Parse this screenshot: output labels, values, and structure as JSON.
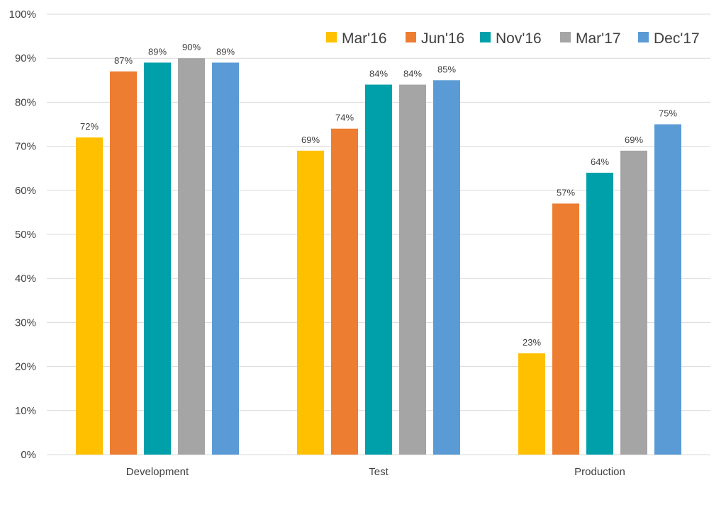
{
  "chart_data": {
    "type": "bar",
    "categories": [
      "Development",
      "Test",
      "Production"
    ],
    "series": [
      {
        "name": "Mar'16",
        "color": "#FFC000",
        "values": [
          72,
          69,
          23
        ]
      },
      {
        "name": "Jun'16",
        "color": "#ED7D31",
        "values": [
          87,
          74,
          57
        ]
      },
      {
        "name": "Nov'16",
        "color": "#00A0AA",
        "values": [
          89,
          84,
          64
        ]
      },
      {
        "name": "Mar'17",
        "color": "#A5A5A5",
        "values": [
          90,
          84,
          69
        ]
      },
      {
        "name": "Dec'17",
        "color": "#5B9BD5",
        "values": [
          89,
          85,
          75
        ]
      }
    ],
    "ylim": [
      0,
      100
    ],
    "yticks": [
      "0%",
      "10%",
      "20%",
      "30%",
      "40%",
      "50%",
      "60%",
      "70%",
      "80%",
      "90%",
      "100%"
    ],
    "data_labels": [
      [
        "72%",
        "69%",
        "23%"
      ],
      [
        "87%",
        "74%",
        "57%"
      ],
      [
        "89%",
        "84%",
        "64%"
      ],
      [
        "90%",
        "84%",
        "69%"
      ],
      [
        "89%",
        "85%",
        "75%"
      ]
    ],
    "legend_position": "top-right",
    "grid": true
  }
}
